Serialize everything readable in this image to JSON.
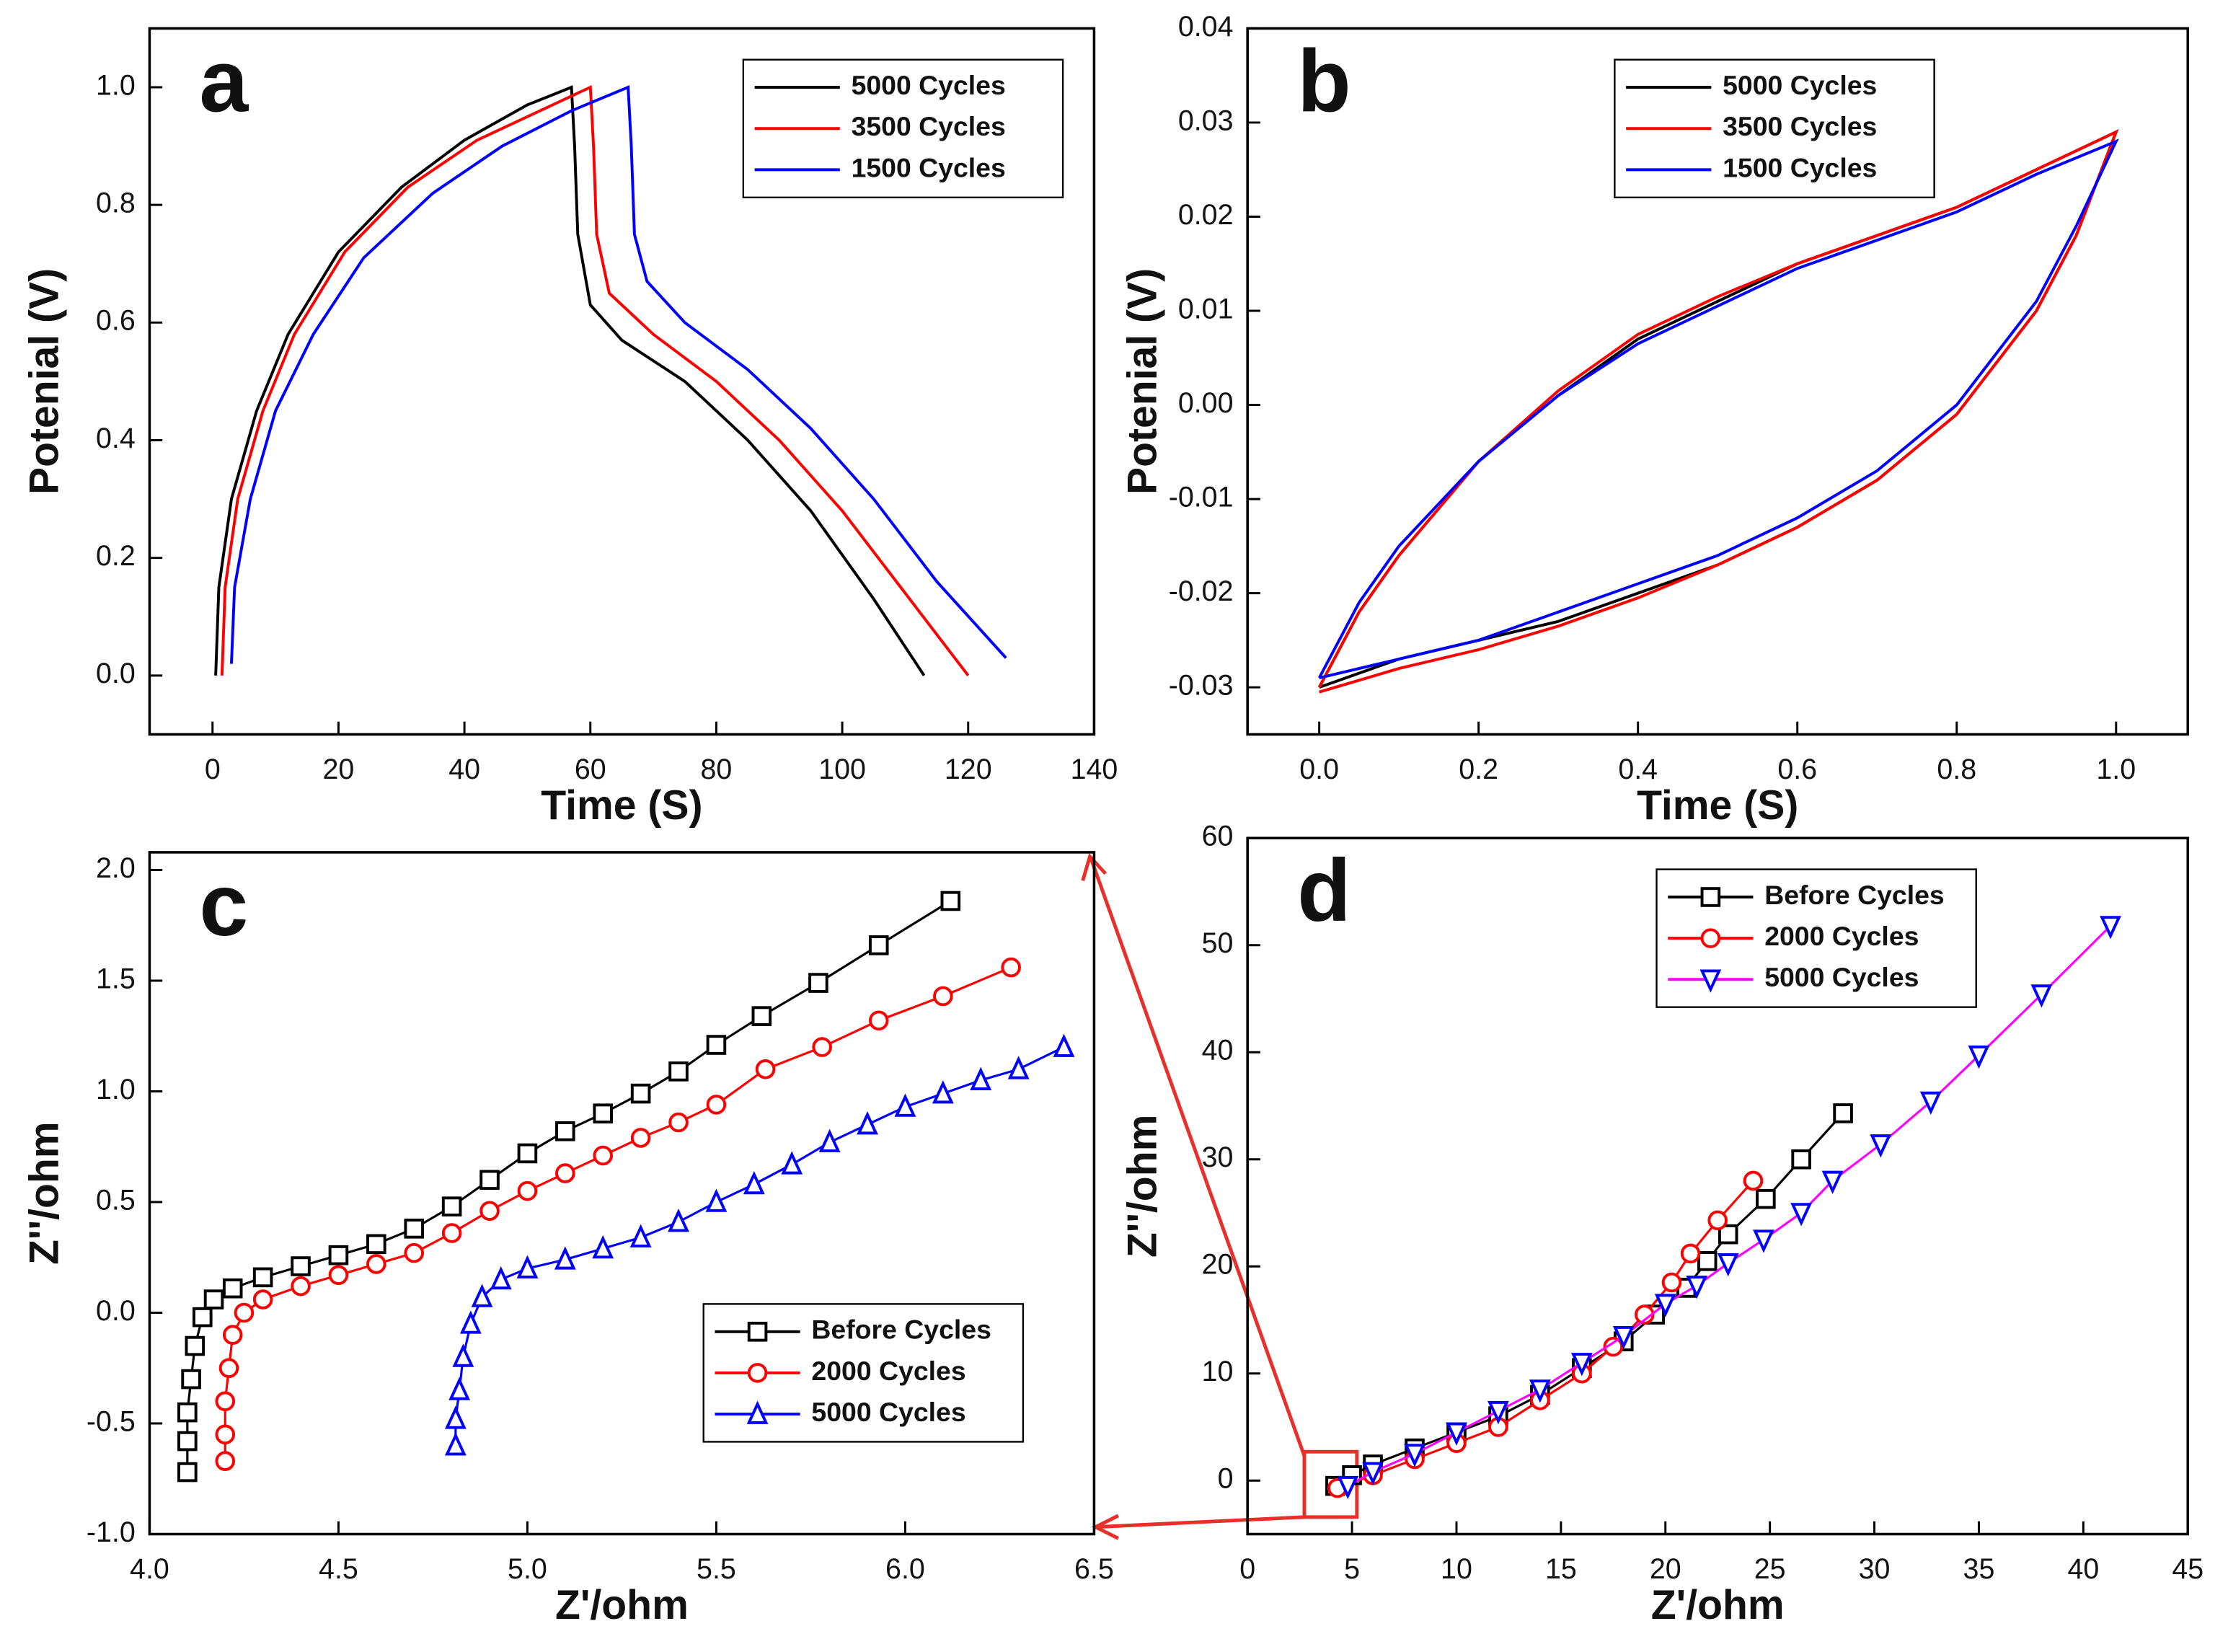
{
  "chart_data": [
    {
      "type": "line",
      "panel_label": "a",
      "xlabel": "Time (S)",
      "ylabel": "Potenial (V)",
      "xlim": [
        -10,
        140
      ],
      "xticks": [
        0,
        20,
        40,
        60,
        80,
        100,
        120,
        140
      ],
      "ylim": [
        -0.1,
        1.1
      ],
      "yticks": [
        {
          "value": 0,
          "label": "0.0"
        },
        0.2,
        0.4,
        0.6,
        0.8,
        {
          "value": 1,
          "label": "1.0"
        }
      ],
      "legend": "upper right",
      "series": [
        {
          "name": "5000 Cycles",
          "color": "#000000",
          "x": [
            0.5,
            1,
            3,
            7,
            12,
            20,
            30,
            40,
            50,
            57,
            57.5,
            58,
            60,
            65,
            75,
            85,
            95,
            105,
            113
          ],
          "values": [
            0,
            0.15,
            0.3,
            0.45,
            0.58,
            0.72,
            0.83,
            0.91,
            0.97,
            1.0,
            0.9,
            0.75,
            0.63,
            0.57,
            0.5,
            0.4,
            0.28,
            0.13,
            0
          ]
        },
        {
          "name": "3500 Cycles",
          "color": "#ff0000",
          "x": [
            1.5,
            2,
            4,
            8,
            13,
            21,
            31,
            42,
            52,
            60,
            60.5,
            61,
            63,
            70,
            80,
            90,
            100,
            110,
            120
          ],
          "values": [
            0,
            0.15,
            0.3,
            0.45,
            0.58,
            0.72,
            0.83,
            0.91,
            0.96,
            1.0,
            0.9,
            0.75,
            0.65,
            0.58,
            0.5,
            0.4,
            0.28,
            0.14,
            0
          ]
        },
        {
          "name": "1500 Cycles",
          "color": "#0000ff",
          "x": [
            3,
            3.5,
            6,
            10,
            16,
            24,
            35,
            46,
            57,
            66,
            66.5,
            67,
            69,
            75,
            85,
            95,
            105,
            115,
            126
          ],
          "values": [
            0.02,
            0.15,
            0.3,
            0.45,
            0.58,
            0.71,
            0.82,
            0.9,
            0.96,
            1.0,
            0.9,
            0.75,
            0.67,
            0.6,
            0.52,
            0.42,
            0.3,
            0.16,
            0.03
          ]
        }
      ]
    },
    {
      "type": "line",
      "panel_label": "b",
      "xlabel": "Time (S)",
      "ylabel": "Potenial (V)",
      "xlim": [
        -0.09,
        1.09
      ],
      "xticks": [
        {
          "value": 0,
          "label": "0.0"
        },
        0.2,
        0.4,
        0.6,
        0.8,
        {
          "value": 1,
          "label": "1.0"
        }
      ],
      "ylim": [
        -0.035,
        0.04
      ],
      "yticks": [
        -0.03,
        -0.02,
        -0.01,
        {
          "value": 0,
          "label": "0.00"
        },
        0.01,
        0.02,
        0.03,
        0.04
      ],
      "legend": "upper center",
      "series": [
        {
          "name": "5000 Cycles",
          "color": "#000000",
          "x": [
            0,
            0.05,
            0.1,
            0.2,
            0.3,
            0.4,
            0.5,
            0.6,
            0.7,
            0.8,
            0.9,
            1.0,
            0.95,
            0.9,
            0.8,
            0.7,
            0.6,
            0.5,
            0.4,
            0.3,
            0.2,
            0.1,
            0
          ],
          "values": [
            -0.03,
            -0.022,
            -0.016,
            -0.006,
            0.001,
            0.007,
            0.011,
            0.015,
            0.018,
            0.021,
            0.025,
            0.029,
            0.018,
            0.01,
            -0.001,
            -0.008,
            -0.013,
            -0.017,
            -0.02,
            -0.023,
            -0.025,
            -0.027,
            -0.03
          ]
        },
        {
          "name": "3500 Cycles",
          "color": "#ff0000",
          "x": [
            0,
            0.05,
            0.1,
            0.2,
            0.3,
            0.4,
            0.5,
            0.6,
            0.7,
            0.8,
            0.9,
            1.0,
            0.95,
            0.9,
            0.8,
            0.7,
            0.6,
            0.5,
            0.4,
            0.3,
            0.2,
            0.1,
            0
          ],
          "values": [
            -0.03,
            -0.022,
            -0.016,
            -0.006,
            0.0015,
            0.0075,
            0.0115,
            0.015,
            0.018,
            0.021,
            0.025,
            0.029,
            0.018,
            0.01,
            -0.001,
            -0.008,
            -0.013,
            -0.017,
            -0.0205,
            -0.0235,
            -0.026,
            -0.028,
            -0.0305
          ]
        },
        {
          "name": "1500 Cycles",
          "color": "#0000ff",
          "x": [
            0,
            0.05,
            0.1,
            0.2,
            0.3,
            0.4,
            0.5,
            0.6,
            0.7,
            0.8,
            0.9,
            1.0,
            0.95,
            0.9,
            0.8,
            0.7,
            0.6,
            0.5,
            0.4,
            0.3,
            0.2,
            0.1,
            0
          ],
          "values": [
            -0.029,
            -0.021,
            -0.015,
            -0.006,
            0.001,
            0.0065,
            0.0105,
            0.0145,
            0.0175,
            0.0205,
            0.0245,
            0.028,
            0.019,
            0.011,
            0.0,
            -0.007,
            -0.012,
            -0.016,
            -0.019,
            -0.022,
            -0.025,
            -0.027,
            -0.029
          ]
        }
      ]
    },
    {
      "type": "line",
      "panel_label": "c",
      "xlabel": "Z'/ohm",
      "ylabel": "Z''/ohm",
      "xlim": [
        4,
        6.5
      ],
      "xticks": [
        {
          "value": 4,
          "label": "4.0"
        },
        4.5,
        {
          "value": 5,
          "label": "5.0"
        },
        5.5,
        {
          "value": 6,
          "label": "6.0"
        },
        6.5
      ],
      "ylim": [
        -1,
        2.08
      ],
      "yticks": [
        {
          "value": -1,
          "label": "-1.0"
        },
        -0.5,
        {
          "value": 0,
          "label": "0.0"
        },
        0.5,
        {
          "value": 1,
          "label": "1.0"
        },
        1.5,
        {
          "value": 2,
          "label": "2.0"
        }
      ],
      "legend": "lower right",
      "series": [
        {
          "name": "Before Cycles",
          "color": "#000000",
          "marker": "square",
          "x": [
            4.1,
            4.1,
            4.1,
            4.11,
            4.12,
            4.14,
            4.17,
            4.22,
            4.3,
            4.4,
            4.5,
            4.6,
            4.7,
            4.8,
            4.9,
            5.0,
            5.1,
            5.2,
            5.3,
            5.4,
            5.5,
            5.62,
            5.77,
            5.93,
            6.12
          ],
          "values": [
            -0.72,
            -0.58,
            -0.45,
            -0.3,
            -0.15,
            -0.02,
            0.06,
            0.11,
            0.16,
            0.21,
            0.26,
            0.31,
            0.38,
            0.48,
            0.6,
            0.72,
            0.82,
            0.9,
            0.99,
            1.09,
            1.21,
            1.34,
            1.49,
            1.66,
            1.86
          ]
        },
        {
          "name": "2000 Cycles",
          "color": "#ff0000",
          "marker": "circle",
          "x": [
            4.2,
            4.2,
            4.2,
            4.21,
            4.22,
            4.25,
            4.3,
            4.4,
            4.5,
            4.6,
            4.7,
            4.8,
            4.9,
            5.0,
            5.1,
            5.2,
            5.3,
            5.4,
            5.5,
            5.63,
            5.78,
            5.93,
            6.1,
            6.28
          ],
          "values": [
            -0.67,
            -0.55,
            -0.4,
            -0.25,
            -0.1,
            0,
            0.06,
            0.12,
            0.17,
            0.22,
            0.27,
            0.36,
            0.46,
            0.55,
            0.63,
            0.71,
            0.79,
            0.86,
            0.94,
            1.1,
            1.2,
            1.32,
            1.43,
            1.56
          ]
        },
        {
          "name": "5000 Cycles",
          "color": "#0000ff",
          "marker": "triangle",
          "x": [
            4.81,
            4.81,
            4.82,
            4.83,
            4.85,
            4.88,
            4.93,
            5.0,
            5.1,
            5.2,
            5.3,
            5.4,
            5.5,
            5.6,
            5.7,
            5.8,
            5.9,
            6.0,
            6.1,
            6.2,
            6.3,
            6.42
          ],
          "values": [
            -0.6,
            -0.48,
            -0.35,
            -0.2,
            -0.05,
            0.07,
            0.15,
            0.2,
            0.24,
            0.29,
            0.34,
            0.41,
            0.5,
            0.58,
            0.67,
            0.77,
            0.85,
            0.93,
            0.99,
            1.05,
            1.1,
            1.2
          ]
        }
      ]
    },
    {
      "type": "line",
      "panel_label": "d",
      "xlabel": "Z'/ohm",
      "ylabel": "Z''/ohm",
      "xlim": [
        0,
        45
      ],
      "xticks": [
        0,
        5,
        10,
        15,
        20,
        25,
        30,
        35,
        40,
        45
      ],
      "ylim": [
        -5,
        60
      ],
      "yticks": [
        0,
        10,
        20,
        30,
        40,
        50,
        60
      ],
      "legend": "upper left",
      "series": [
        {
          "name": "Before Cycles",
          "color": "#000000",
          "marker": "square",
          "x": [
            4.2,
            5,
            6,
            8,
            10,
            12,
            14,
            16,
            18,
            19.5,
            21,
            22,
            23,
            24.8,
            26.5,
            28.5
          ],
          "values": [
            -0.5,
            0.5,
            1.5,
            3,
            4.5,
            6,
            8,
            10.5,
            13,
            15.5,
            18,
            20.5,
            23,
            26.3,
            30,
            34.3
          ]
        },
        {
          "name": "2000 Cycles",
          "color": "#ff0000",
          "marker": "circle",
          "x": [
            4.3,
            6,
            8,
            10,
            12,
            14,
            16,
            17.5,
            19,
            20.3,
            21.2,
            22.5,
            24.2
          ],
          "values": [
            -0.7,
            0.5,
            2,
            3.5,
            5,
            7.5,
            10,
            12.5,
            15.5,
            18.5,
            21.2,
            24.3,
            28
          ]
        },
        {
          "name": "5000 Cycles",
          "color": "#0000ff",
          "line_color": "#ff00ff",
          "marker": "triangle-down",
          "x": [
            4.8,
            6,
            8,
            10,
            12,
            14,
            16,
            18,
            20,
            21.5,
            23,
            24.7,
            26.5,
            28,
            30.3,
            32.7,
            35,
            38,
            41.3
          ],
          "values": [
            -0.5,
            0.8,
            2.5,
            4.5,
            6.5,
            8.5,
            11,
            13.5,
            16.5,
            18.2,
            20.3,
            22.5,
            25,
            28,
            31.4,
            35.4,
            39.7,
            45.4,
            51.8
          ]
        }
      ]
    }
  ]
}
